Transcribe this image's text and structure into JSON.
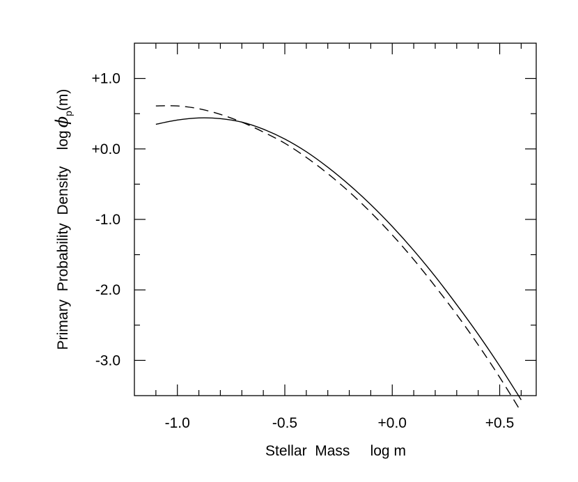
{
  "chart_data": {
    "type": "line",
    "xlabel": "Stellar  Mass     log m",
    "ylabel_parts": {
      "text": "Primary  Probability  Density    log",
      "phi": "ϕ",
      "subscript": "p",
      "suffix": "(m)"
    },
    "xlim": [
      -1.2,
      0.67
    ],
    "ylim": [
      -3.5,
      1.5
    ],
    "x_ticks": [
      {
        "value": -1.0,
        "label": "-1.0"
      },
      {
        "value": -0.5,
        "label": "-0.5"
      },
      {
        "value": 0.0,
        "label": "+0.0"
      },
      {
        "value": 0.5,
        "label": "+0.5"
      }
    ],
    "x_minor_step": 0.1,
    "y_ticks": [
      {
        "value": 1.0,
        "label": "+1.0"
      },
      {
        "value": 0.0,
        "label": "+0.0"
      },
      {
        "value": -1.0,
        "label": "-1.0"
      },
      {
        "value": -2.0,
        "label": "-2.0"
      },
      {
        "value": -3.0,
        "label": "-3.0"
      }
    ],
    "y_minor_step": 0.5,
    "series": [
      {
        "name": "solid",
        "style": "solid",
        "x": [
          -1.1,
          -1.0,
          -0.9,
          -0.8,
          -0.7,
          -0.6,
          -0.5,
          -0.4,
          -0.3,
          -0.2,
          -0.1,
          0.0,
          0.1,
          0.2,
          0.3,
          0.4,
          0.5,
          0.6
        ],
        "y": [
          0.35,
          0.41,
          0.44,
          0.43,
          0.38,
          0.28,
          0.14,
          -0.04,
          -0.26,
          -0.51,
          -0.79,
          -1.1,
          -1.44,
          -1.81,
          -2.21,
          -2.63,
          -3.08,
          -3.56
        ]
      },
      {
        "name": "dashed",
        "style": "dashed",
        "x": [
          -1.1,
          -1.0,
          -0.9,
          -0.8,
          -0.7,
          -0.6,
          -0.5,
          -0.4,
          -0.3,
          -0.2,
          -0.1,
          0.0,
          0.1,
          0.2,
          0.3,
          0.4,
          0.5,
          0.6
        ],
        "y": [
          0.61,
          0.61,
          0.57,
          0.49,
          0.38,
          0.24,
          0.08,
          -0.12,
          -0.35,
          -0.61,
          -0.9,
          -1.22,
          -1.57,
          -1.95,
          -2.35,
          -2.78,
          -3.24,
          -3.73
        ]
      }
    ]
  }
}
